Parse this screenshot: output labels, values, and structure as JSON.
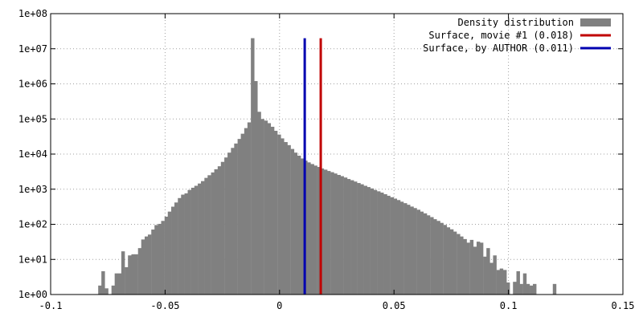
{
  "chart_data": {
    "type": "bar",
    "yscale": "log",
    "xlim": [
      -0.1,
      0.15
    ],
    "ylim": [
      1,
      100000000
    ],
    "x_ticks": [
      -0.1,
      -0.05,
      0,
      0.05,
      0.1,
      0.15
    ],
    "x_tick_labels": [
      "-0.1",
      "-0.05",
      "0",
      "0.05",
      "0.1",
      "0.15"
    ],
    "y_ticks": [
      1,
      10,
      100,
      1000,
      10000,
      100000,
      1000000,
      10000000,
      100000000
    ],
    "y_tick_labels": [
      "1e+00",
      "1e+01",
      "1e+02",
      "1e+03",
      "1e+04",
      "1e+05",
      "1e+06",
      "1e+07",
      "1e+08"
    ],
    "grid": true,
    "legend_position": "top-right",
    "histogram": {
      "name": "Density distribution",
      "color": "#808080",
      "bin_width": 0.00145,
      "bins": [
        [
          -0.0785,
          1.8
        ],
        [
          -0.0771,
          4.6
        ],
        [
          -0.0756,
          1.5
        ],
        [
          -0.0742,
          1.0
        ],
        [
          -0.0727,
          1.8
        ],
        [
          -0.0713,
          4.0
        ],
        [
          -0.0698,
          4.0
        ],
        [
          -0.0684,
          17
        ],
        [
          -0.0669,
          6
        ],
        [
          -0.0655,
          13
        ],
        [
          -0.064,
          14
        ],
        [
          -0.0626,
          14
        ],
        [
          -0.0611,
          21
        ],
        [
          -0.0597,
          37
        ],
        [
          -0.0582,
          45
        ],
        [
          -0.0568,
          51
        ],
        [
          -0.0553,
          71
        ],
        [
          -0.0539,
          95
        ],
        [
          -0.0524,
          103
        ],
        [
          -0.051,
          125
        ],
        [
          -0.0495,
          165
        ],
        [
          -0.0481,
          230
        ],
        [
          -0.0466,
          318
        ],
        [
          -0.0452,
          418
        ],
        [
          -0.0437,
          560
        ],
        [
          -0.0423,
          700
        ],
        [
          -0.0408,
          760
        ],
        [
          -0.0394,
          950
        ],
        [
          -0.0379,
          1100
        ],
        [
          -0.0365,
          1250
        ],
        [
          -0.035,
          1450
        ],
        [
          -0.0336,
          1700
        ],
        [
          -0.0321,
          2100
        ],
        [
          -0.0307,
          2500
        ],
        [
          -0.0292,
          3000
        ],
        [
          -0.0278,
          3700
        ],
        [
          -0.0263,
          4500
        ],
        [
          -0.0249,
          6000
        ],
        [
          -0.0234,
          8000
        ],
        [
          -0.022,
          11000
        ],
        [
          -0.0205,
          15000
        ],
        [
          -0.0191,
          20000
        ],
        [
          -0.0176,
          27000
        ],
        [
          -0.0162,
          38000
        ],
        [
          -0.0147,
          55000
        ],
        [
          -0.0133,
          80000
        ],
        [
          -0.0118,
          20000000
        ],
        [
          -0.0104,
          1200000
        ],
        [
          -0.0089,
          160000
        ],
        [
          -0.0075,
          100000
        ],
        [
          -0.006,
          90000
        ],
        [
          -0.0046,
          76000
        ],
        [
          -0.0031,
          60000
        ],
        [
          -0.0017,
          46000
        ],
        [
          -0.0002,
          36000
        ],
        [
          0.0012,
          28000
        ],
        [
          0.0027,
          22000
        ],
        [
          0.0041,
          18000
        ],
        [
          0.0056,
          14000
        ],
        [
          0.007,
          11000
        ],
        [
          0.0085,
          9000
        ],
        [
          0.0099,
          7500
        ],
        [
          0.0114,
          6500
        ],
        [
          0.0128,
          5800
        ],
        [
          0.0143,
          5200
        ],
        [
          0.0157,
          4700
        ],
        [
          0.0172,
          4300
        ],
        [
          0.0186,
          3900
        ],
        [
          0.0201,
          3600
        ],
        [
          0.0215,
          3300
        ],
        [
          0.023,
          3050
        ],
        [
          0.0244,
          2800
        ],
        [
          0.0259,
          2550
        ],
        [
          0.0273,
          2350
        ],
        [
          0.0288,
          2150
        ],
        [
          0.0302,
          1950
        ],
        [
          0.0317,
          1800
        ],
        [
          0.0331,
          1650
        ],
        [
          0.0346,
          1500
        ],
        [
          0.036,
          1380
        ],
        [
          0.0375,
          1250
        ],
        [
          0.0389,
          1150
        ],
        [
          0.0404,
          1050
        ],
        [
          0.0418,
          950
        ],
        [
          0.0433,
          870
        ],
        [
          0.0447,
          800
        ],
        [
          0.0462,
          720
        ],
        [
          0.0476,
          650
        ],
        [
          0.0491,
          590
        ],
        [
          0.0505,
          540
        ],
        [
          0.052,
          490
        ],
        [
          0.0534,
          440
        ],
        [
          0.0549,
          400
        ],
        [
          0.0563,
          360
        ],
        [
          0.0578,
          320
        ],
        [
          0.0592,
          290
        ],
        [
          0.0607,
          260
        ],
        [
          0.0621,
          230
        ],
        [
          0.0636,
          205
        ],
        [
          0.065,
          180
        ],
        [
          0.0665,
          160
        ],
        [
          0.0679,
          140
        ],
        [
          0.0694,
          125
        ],
        [
          0.0708,
          110
        ],
        [
          0.0723,
          96
        ],
        [
          0.0737,
          82
        ],
        [
          0.0752,
          72
        ],
        [
          0.0766,
          62
        ],
        [
          0.0781,
          53
        ],
        [
          0.0795,
          45
        ],
        [
          0.081,
          38
        ],
        [
          0.0824,
          30
        ],
        [
          0.0839,
          36
        ],
        [
          0.0853,
          23
        ],
        [
          0.0868,
          32
        ],
        [
          0.0882,
          30
        ],
        [
          0.0897,
          12
        ],
        [
          0.0911,
          21
        ],
        [
          0.0926,
          8
        ],
        [
          0.094,
          13
        ],
        [
          0.0955,
          5
        ],
        [
          0.0969,
          5.5
        ],
        [
          0.0984,
          5
        ],
        [
          0.0998,
          2.2
        ],
        [
          0.1013,
          1.0
        ],
        [
          0.1027,
          2.3
        ],
        [
          0.1042,
          4.6
        ],
        [
          0.1056,
          2.0
        ],
        [
          0.1071,
          4.0
        ],
        [
          0.1085,
          2.0
        ],
        [
          0.11,
          1.8
        ],
        [
          0.1114,
          2.0
        ],
        [
          0.1129,
          1.0
        ],
        [
          0.1143,
          1.0
        ],
        [
          0.1158,
          1.0
        ],
        [
          0.1172,
          1.0
        ],
        [
          0.1187,
          1.0
        ],
        [
          0.1201,
          2.0
        ]
      ]
    },
    "vlines": [
      {
        "name": "Surface, movie #1 (0.018)",
        "x": 0.018,
        "color": "#c00000",
        "y_top": 20000000
      },
      {
        "name": "Surface, by AUTHOR (0.011)",
        "x": 0.011,
        "color": "#0000b0",
        "y_top": 20000000
      }
    ]
  }
}
